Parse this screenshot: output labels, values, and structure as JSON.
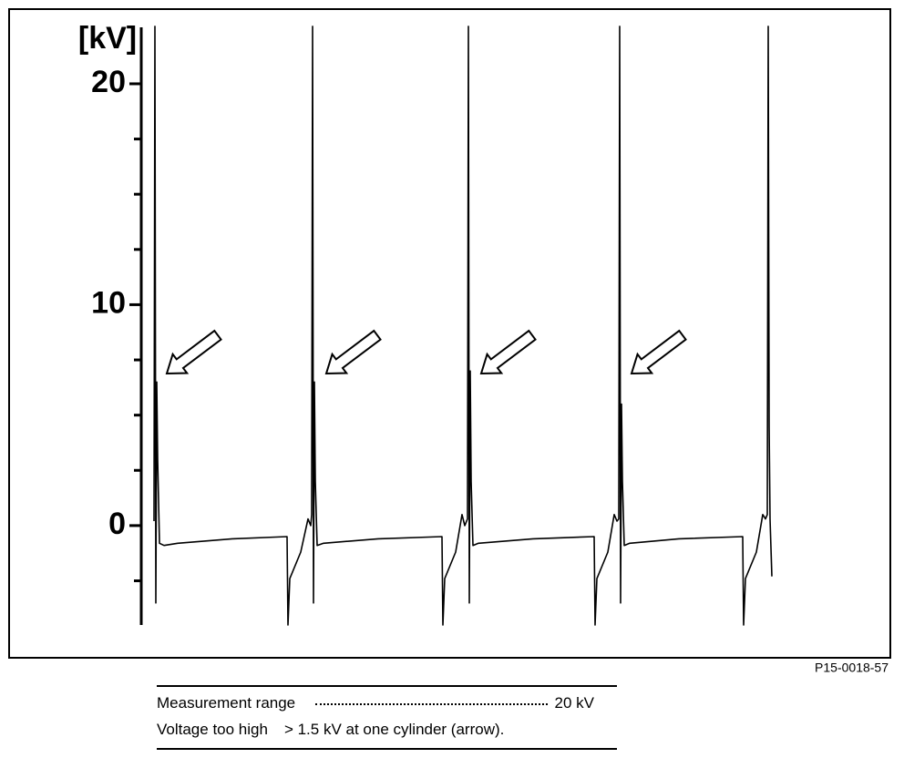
{
  "chart_data": {
    "type": "line",
    "y_label": "[kV]",
    "series": [
      {
        "color": "#000000",
        "x": [
          14,
          15,
          16,
          17,
          18,
          20,
          25,
          40,
          100,
          160,
          161,
          163,
          175,
          183,
          186,
          187,
          188,
          189,
          190,
          191,
          193,
          200,
          260,
          330,
          331,
          333,
          345,
          352,
          355,
          358,
          359,
          360,
          361,
          362,
          364,
          370,
          430,
          497,
          498,
          500,
          512,
          519,
          522,
          524,
          525,
          526,
          527,
          528,
          530,
          536,
          590,
          660,
          661,
          663,
          675,
          682,
          685,
          687,
          688,
          689,
          690,
          692
        ],
        "values": [
          0.2,
          22.6,
          -3.5,
          6.5,
          3,
          -0.8,
          -0.9,
          -0.8,
          -0.6,
          -0.5,
          -4.5,
          -2.4,
          -1.2,
          0.3,
          0,
          0.5,
          22.6,
          -3.5,
          6.5,
          2,
          -0.9,
          -0.8,
          -0.6,
          -0.5,
          -4.5,
          -2.4,
          -1.2,
          0.5,
          0,
          0.3,
          22.6,
          -3.5,
          7,
          2,
          -0.9,
          -0.8,
          -0.6,
          -0.5,
          -4.5,
          -2.4,
          -1.2,
          0.5,
          0.2,
          0.3,
          22.6,
          -3.5,
          5.5,
          2,
          -0.9,
          -0.8,
          -0.6,
          -0.5,
          -4.5,
          -2.4,
          -1.2,
          0.5,
          0.3,
          0.5,
          22.6,
          4.5,
          0.3,
          -2.3
        ]
      }
    ],
    "xlim": [
      0,
      700
    ],
    "ylim": [
      -4.5,
      22.7
    ],
    "yticks": [
      0,
      10,
      20
    ],
    "minor_yticks": [
      -2.5,
      2.5,
      5,
      7.5,
      12.5,
      15,
      17.5
    ]
  },
  "figure_code": "P15-0018-57",
  "caption": [
    [
      "Measurement range",
      "20 kV"
    ],
    [
      "Voltage too high",
      "> 1.5 kV at one cylinder (arrow)."
    ]
  ]
}
